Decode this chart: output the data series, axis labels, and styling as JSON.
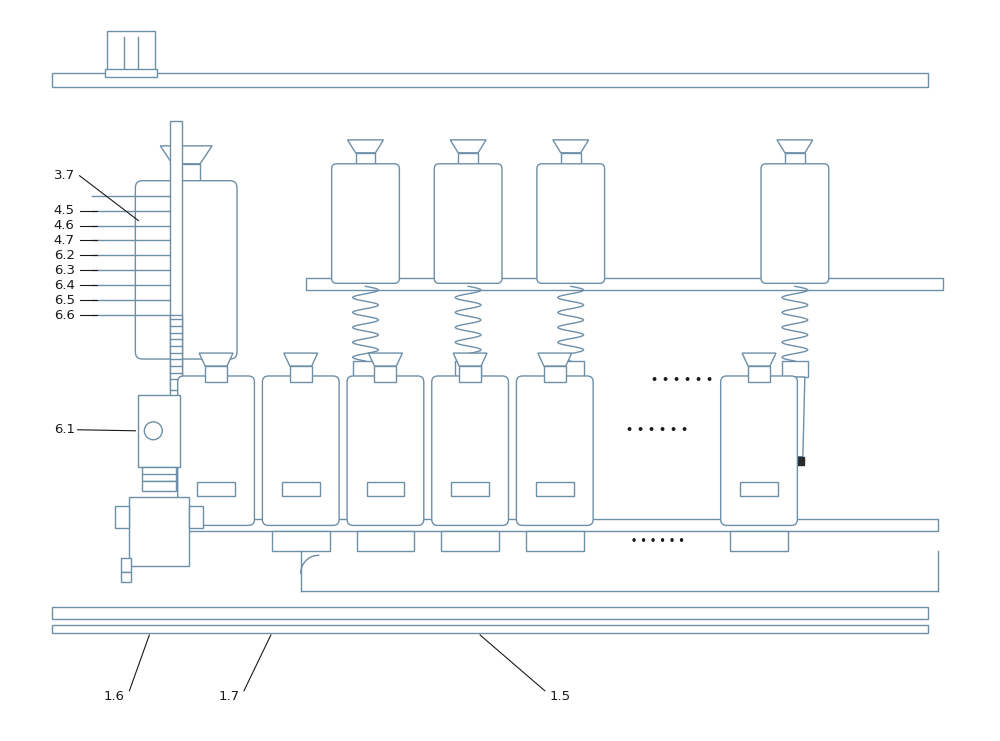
{
  "bg_color": "#ffffff",
  "line_color": "#6d8fa8",
  "line_width": 1.0,
  "black": "#1a1a1a",
  "dark_fill": "#2a2a2a",
  "label_fontsize": 9.5
}
